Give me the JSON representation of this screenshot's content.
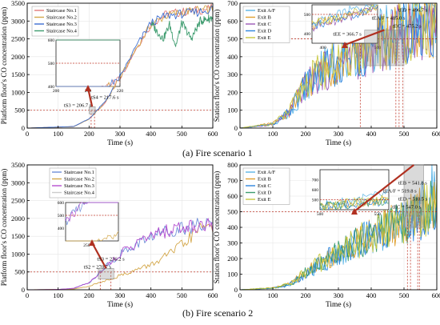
{
  "captions": {
    "a": "(a) Fire scenario 1",
    "b": "(b) Fire scenario 2"
  },
  "chart_data": [
    {
      "id": "a-left",
      "type": "line",
      "xlabel": "Time (s)",
      "ylabel": "Platform floor's CO concentration (ppm)",
      "xlim": [
        0,
        600
      ],
      "ylim": [
        0,
        3500
      ],
      "xticks": [
        0,
        100,
        200,
        300,
        400,
        500,
        600
      ],
      "yticks": [
        0,
        500,
        1000,
        1500,
        2000,
        2500,
        3000,
        3500
      ],
      "threshold": 500,
      "legend_position": "top-left",
      "series": [
        {
          "name": "Staircase No.1",
          "color": "#e07b7b",
          "points": [
            [
              0,
              0
            ],
            [
              150,
              40
            ],
            [
              200,
              250
            ],
            [
              250,
              700
            ],
            [
              300,
              1400
            ],
            [
              350,
              2200
            ],
            [
              400,
              2900
            ],
            [
              450,
              3200
            ],
            [
              500,
              3250
            ],
            [
              550,
              3300
            ],
            [
              600,
              3350
            ]
          ]
        },
        {
          "name": "Staircase No.2",
          "color": "#d4a84b",
          "points": [
            [
              0,
              0
            ],
            [
              150,
              40
            ],
            [
              200,
              250
            ],
            [
              250,
              700
            ],
            [
              300,
              1400
            ],
            [
              350,
              2200
            ],
            [
              400,
              2900
            ],
            [
              450,
              3150
            ],
            [
              500,
              3250
            ],
            [
              550,
              3300
            ],
            [
              600,
              3320
            ]
          ]
        },
        {
          "name": "Staircase No.3",
          "color": "#3f6fd1",
          "points": [
            [
              0,
              0
            ],
            [
              150,
              45
            ],
            [
              200,
              260
            ],
            [
              250,
              720
            ],
            [
              300,
              1420
            ],
            [
              350,
              2250
            ],
            [
              400,
              2950
            ],
            [
              450,
              3150
            ],
            [
              500,
              3200
            ],
            [
              550,
              3250
            ],
            [
              600,
              3350
            ]
          ]
        },
        {
          "name": "Staircase No.4",
          "color": "#3e9c6f",
          "points": [
            [
              400,
              2950
            ],
            [
              420,
              2700
            ],
            [
              440,
              2500
            ],
            [
              460,
              2900
            ],
            [
              480,
              2300
            ],
            [
              500,
              2950
            ],
            [
              530,
              2500
            ],
            [
              560,
              3000
            ],
            [
              600,
              3100
            ]
          ]
        }
      ],
      "annotations": [
        {
          "text": "tS3 = 206.7 s",
          "x": 206.7
        },
        {
          "text": "tS4 = 217.6 s",
          "x": 217.6
        }
      ],
      "inset": {
        "xlim": [
          200,
          220
        ],
        "ylim": [
          400,
          600
        ],
        "xticks": [
          200,
          210,
          220
        ],
        "yticks": [
          400,
          500,
          600
        ]
      }
    },
    {
      "id": "a-right",
      "type": "line",
      "xlabel": "Time (s)",
      "ylabel": "Station floor's CO concentration (ppm)",
      "xlim": [
        0,
        600
      ],
      "ylim": [
        0,
        700
      ],
      "xticks": [
        0,
        100,
        200,
        300,
        400,
        500,
        600
      ],
      "yticks": [
        0,
        100,
        200,
        300,
        400,
        500,
        600,
        700
      ],
      "threshold": 500,
      "legend_position": "top-left",
      "series": [
        {
          "name": "Exit A/F",
          "color": "#5ab4e5",
          "points": [
            [
              0,
              0
            ],
            [
              100,
              20
            ],
            [
              150,
              80
            ],
            [
              200,
              230
            ],
            [
              250,
              330
            ],
            [
              300,
              380
            ],
            [
              350,
              430
            ],
            [
              400,
              470
            ],
            [
              450,
              520
            ],
            [
              500,
              560
            ],
            [
              550,
              590
            ],
            [
              600,
              620
            ]
          ]
        },
        {
          "name": "Exit B",
          "color": "#e0a030",
          "points": [
            [
              0,
              0
            ],
            [
              100,
              25
            ],
            [
              150,
              90
            ],
            [
              200,
              250
            ],
            [
              250,
              320
            ],
            [
              300,
              370
            ],
            [
              350,
              420
            ],
            [
              400,
              460
            ],
            [
              450,
              500
            ],
            [
              500,
              540
            ],
            [
              550,
              580
            ],
            [
              600,
              610
            ]
          ]
        },
        {
          "name": "Exit C",
          "color": "#9b59b6",
          "points": [
            [
              0,
              0
            ],
            [
              100,
              20
            ],
            [
              150,
              85
            ],
            [
              200,
              240
            ],
            [
              250,
              310
            ],
            [
              300,
              360
            ],
            [
              350,
              410
            ],
            [
              400,
              450
            ],
            [
              450,
              490
            ],
            [
              500,
              530
            ],
            [
              550,
              570
            ],
            [
              600,
              600
            ]
          ]
        },
        {
          "name": "Exit D",
          "color": "#2e86de",
          "points": [
            [
              0,
              0
            ],
            [
              100,
              22
            ],
            [
              150,
              88
            ],
            [
              200,
              245
            ],
            [
              250,
              315
            ],
            [
              300,
              365
            ],
            [
              350,
              415
            ],
            [
              400,
              455
            ],
            [
              450,
              495
            ],
            [
              500,
              535
            ],
            [
              550,
              575
            ],
            [
              600,
              605
            ]
          ]
        },
        {
          "name": "Exit E",
          "color": "#c8c840",
          "points": [
            [
              0,
              0
            ],
            [
              100,
              24
            ],
            [
              150,
              92
            ],
            [
              200,
              255
            ],
            [
              250,
              325
            ],
            [
              300,
              375
            ],
            [
              350,
              425
            ],
            [
              400,
              465
            ],
            [
              450,
              505
            ],
            [
              500,
              545
            ],
            [
              550,
              585
            ],
            [
              600,
              615
            ]
          ]
        }
      ],
      "annotations": [
        {
          "text": "tEE = 366.7 s",
          "x": 366.7
        },
        {
          "text": "tEC = 475.2 s",
          "x": 475.2
        },
        {
          "text": "tEA/F = 485.0 s",
          "x": 485.0
        },
        {
          "text": "tED = 496.7 s",
          "x": 496.7
        }
      ],
      "inset": {
        "xlim": [
          380,
          500
        ],
        "ylim": [
          350,
          550
        ],
        "xticks": [
          400,
          500
        ],
        "yticks": [
          400,
          500
        ]
      }
    },
    {
      "id": "b-left",
      "type": "line",
      "xlabel": "Time (s)",
      "ylabel": "Platform floor's CO concentration (ppm)",
      "xlim": [
        0,
        600
      ],
      "ylim": [
        0,
        3500
      ],
      "xticks": [
        0,
        100,
        200,
        300,
        400,
        500,
        600
      ],
      "yticks": [
        0,
        500,
        1000,
        1500,
        2000,
        2500,
        3000,
        3500
      ],
      "threshold": 500,
      "legend_position": "top-center",
      "series": [
        {
          "name": "Staircase No.1",
          "color": "#6f8fd8",
          "points": [
            [
              0,
              0
            ],
            [
              100,
              10
            ],
            [
              150,
              40
            ],
            [
              200,
              200
            ],
            [
              230,
              450
            ],
            [
              260,
              700
            ],
            [
              300,
              1000
            ],
            [
              350,
              1250
            ],
            [
              400,
              1500
            ],
            [
              450,
              1650
            ],
            [
              500,
              1750
            ],
            [
              550,
              1800
            ],
            [
              600,
              1820
            ]
          ]
        },
        {
          "name": "Staircase No.2",
          "color": "#d4a84b",
          "points": [
            [
              0,
              0
            ],
            [
              150,
              20
            ],
            [
              200,
              100
            ],
            [
              250,
              250
            ],
            [
              300,
              400
            ],
            [
              350,
              550
            ],
            [
              400,
              700
            ],
            [
              450,
              950
            ],
            [
              500,
              1250
            ],
            [
              550,
              1650
            ],
            [
              580,
              1850
            ],
            [
              600,
              1800
            ]
          ]
        },
        {
          "name": "Staircase No.3",
          "color": "#b54fd0",
          "points": [
            [
              0,
              0
            ],
            [
              100,
              10
            ],
            [
              150,
              40
            ],
            [
              200,
              200
            ],
            [
              236,
              500
            ],
            [
              260,
              700
            ],
            [
              300,
              1000
            ],
            [
              350,
              1300
            ],
            [
              400,
              1500
            ],
            [
              450,
              1650
            ],
            [
              500,
              1750
            ],
            [
              550,
              1800
            ],
            [
              600,
              1850
            ]
          ]
        },
        {
          "name": "Staircase No.4",
          "color": "#cccccc",
          "points": []
        }
      ],
      "annotations": [
        {
          "text": "tS2 = 270.7 s",
          "x": 270.7
        },
        {
          "text": "tS3 = 236.2 s",
          "x": 236.2
        }
      ],
      "inset": {
        "xlim": [
          230,
          280
        ],
        "ylim": [
          300,
          600
        ],
        "xticks": [
          250
        ],
        "yticks": [
          400,
          500,
          600
        ]
      }
    },
    {
      "id": "b-right",
      "type": "line",
      "xlabel": "Time (s)",
      "ylabel": "Station floor's CO concentration (ppm)",
      "xlim": [
        0,
        600
      ],
      "ylim": [
        0,
        800
      ],
      "xticks": [
        0,
        100,
        200,
        300,
        400,
        500,
        600
      ],
      "yticks": [
        0,
        100,
        200,
        300,
        400,
        500,
        600,
        700,
        800
      ],
      "threshold": 500,
      "legend_position": "top-left",
      "series": [
        {
          "name": "Exit A/F",
          "color": "#5ab4e5",
          "points": [
            [
              0,
              0
            ],
            [
              100,
              10
            ],
            [
              150,
              30
            ],
            [
              200,
              100
            ],
            [
              250,
              170
            ],
            [
              300,
              230
            ],
            [
              350,
              290
            ],
            [
              400,
              350
            ],
            [
              450,
              400
            ],
            [
              500,
              440
            ],
            [
              550,
              540
            ],
            [
              600,
              640
            ]
          ]
        },
        {
          "name": "Exit B",
          "color": "#e0a030",
          "points": [
            [
              0,
              0
            ],
            [
              100,
              12
            ],
            [
              150,
              35
            ],
            [
              200,
              110
            ],
            [
              250,
              180
            ],
            [
              300,
              240
            ],
            [
              350,
              295
            ],
            [
              400,
              345
            ],
            [
              450,
              395
            ],
            [
              500,
              430
            ],
            [
              550,
              490
            ],
            [
              600,
              560
            ]
          ]
        },
        {
          "name": "Exit C",
          "color": "#2e86de",
          "points": [
            [
              0,
              0
            ],
            [
              100,
              10
            ],
            [
              150,
              32
            ],
            [
              200,
              105
            ],
            [
              250,
              175
            ],
            [
              300,
              235
            ],
            [
              350,
              292
            ],
            [
              400,
              342
            ],
            [
              450,
              392
            ],
            [
              500,
              428
            ],
            [
              550,
              480
            ],
            [
              600,
              550
            ]
          ]
        },
        {
          "name": "Exit D",
          "color": "#3e9c6f",
          "points": [
            [
              0,
              0
            ],
            [
              100,
              11
            ],
            [
              150,
              33
            ],
            [
              200,
              108
            ],
            [
              250,
              178
            ],
            [
              300,
              238
            ],
            [
              350,
              294
            ],
            [
              400,
              344
            ],
            [
              450,
              394
            ],
            [
              500,
              432
            ],
            [
              550,
              485
            ],
            [
              600,
              555
            ]
          ]
        },
        {
          "name": "Exit E",
          "color": "#c8c840",
          "points": [
            [
              0,
              0
            ],
            [
              100,
              13
            ],
            [
              150,
              36
            ],
            [
              200,
              112
            ],
            [
              250,
              182
            ],
            [
              300,
              242
            ],
            [
              350,
              298
            ],
            [
              400,
              348
            ],
            [
              450,
              398
            ],
            [
              500,
              435
            ],
            [
              550,
              495
            ],
            [
              600,
              565
            ]
          ]
        }
      ],
      "annotations": [
        {
          "text": "tEC = 547.0 s",
          "x": 547.0
        },
        {
          "text": "tED = 510.5 s",
          "x": 510.5
        },
        {
          "text": "tEA/F = 519.8 s",
          "x": 519.8
        },
        {
          "text": "tEB = 541.8 s",
          "x": 541.8
        }
      ],
      "inset": {
        "xlim": [
          500,
          560
        ],
        "ylim": [
          400,
          800
        ],
        "xticks": [
          500,
          550
        ],
        "yticks": [
          500,
          600,
          700
        ]
      }
    }
  ]
}
